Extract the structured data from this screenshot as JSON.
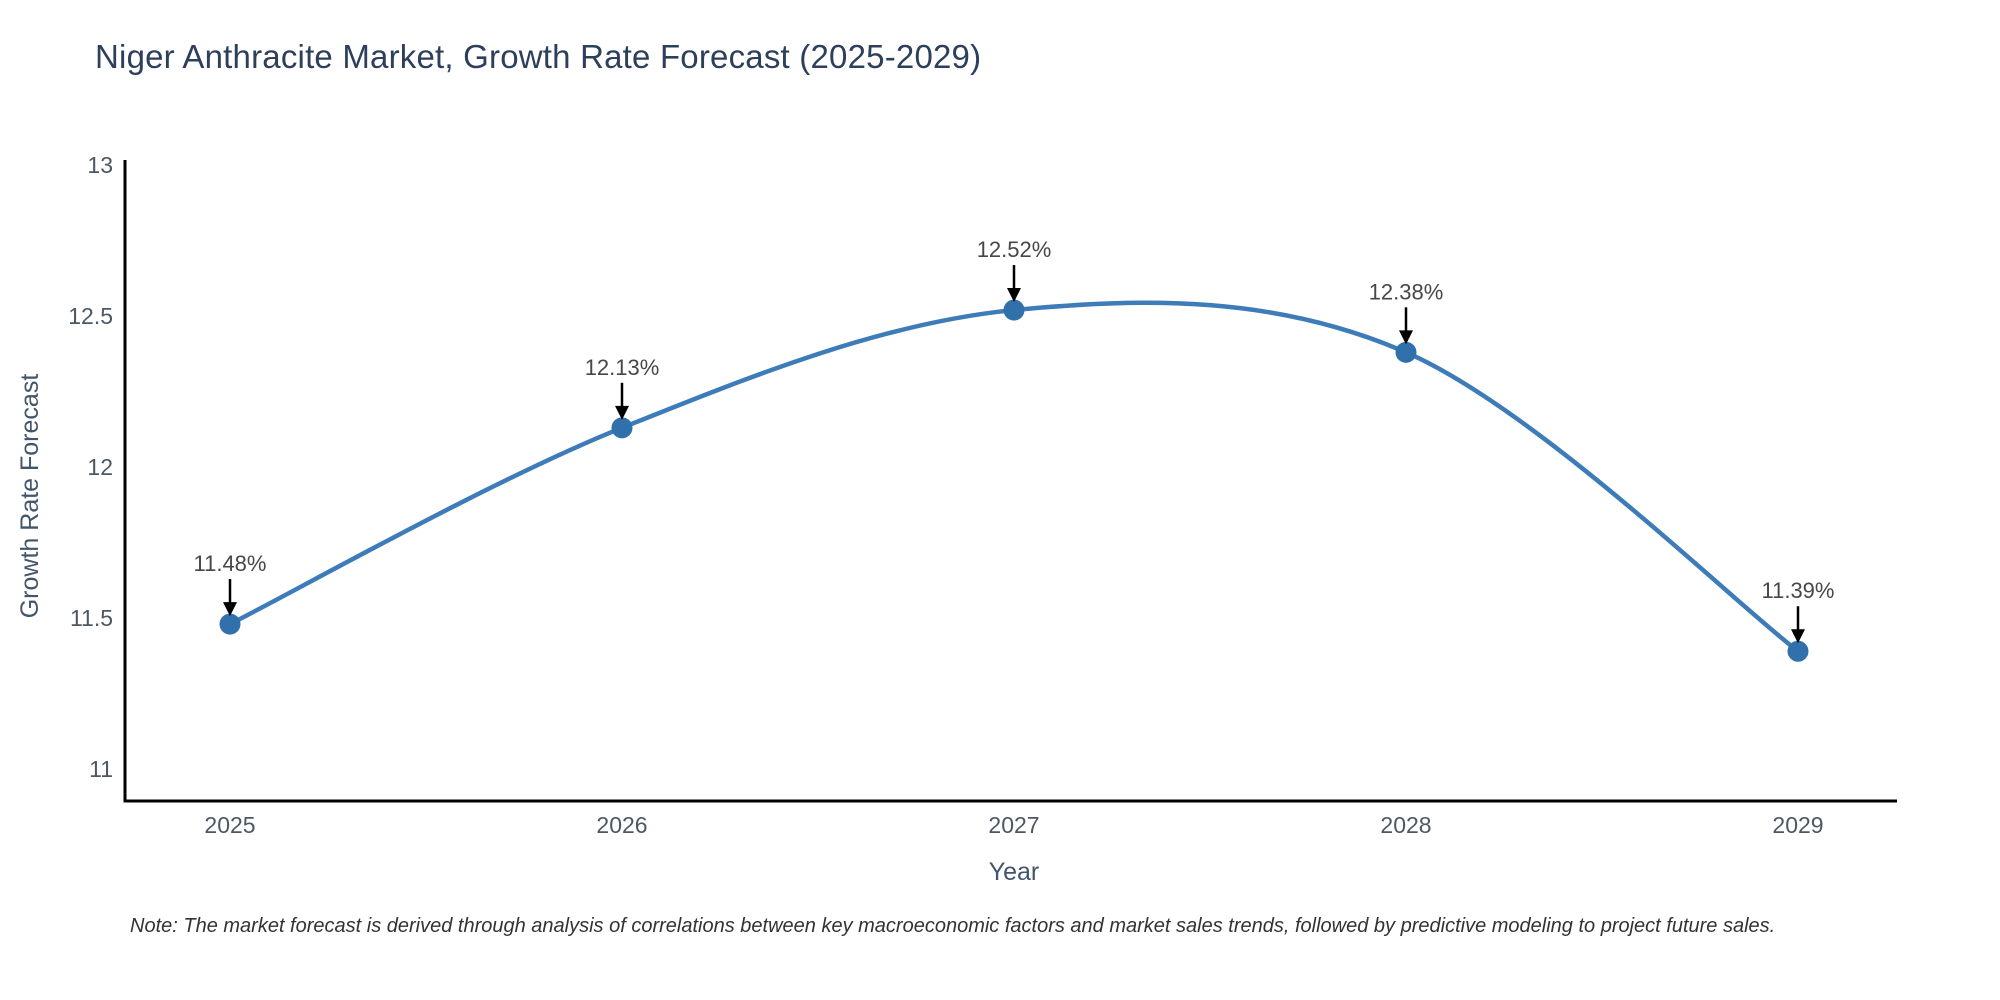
{
  "chart_data": {
    "type": "line",
    "title": "Niger Anthracite Market, Growth Rate Forecast (2025-2029)",
    "xlabel": "Year",
    "ylabel": "Growth Rate Forecast",
    "categories": [
      "2025",
      "2026",
      "2027",
      "2028",
      "2029"
    ],
    "values": [
      11.48,
      12.13,
      12.52,
      12.38,
      11.39
    ],
    "point_labels": [
      "11.48%",
      "12.13%",
      "12.52%",
      "12.38%",
      "11.39%"
    ],
    "yticks": [
      11,
      11.5,
      12,
      12.5,
      13
    ],
    "ytick_labels": [
      "11",
      "11.5",
      "12",
      "12.5",
      "13"
    ],
    "ylim": [
      10.894,
      13.017
    ],
    "grid": false,
    "legend": "none",
    "line_shape": "spline",
    "note": "Note: The market forecast is derived through analysis of correlations between key macroeconomic factors and market sales trends, followed by predictive modeling to project future sales.",
    "colors": {
      "line": "#3d7cb8",
      "marker": "#3071ab",
      "axis": "#000000",
      "tick_label": "#4c5864",
      "axis_title": "#42556b",
      "title": "#2e3f5c",
      "annotation_text": "#474747",
      "arrow": "#000000",
      "background": "#ffffff"
    }
  }
}
